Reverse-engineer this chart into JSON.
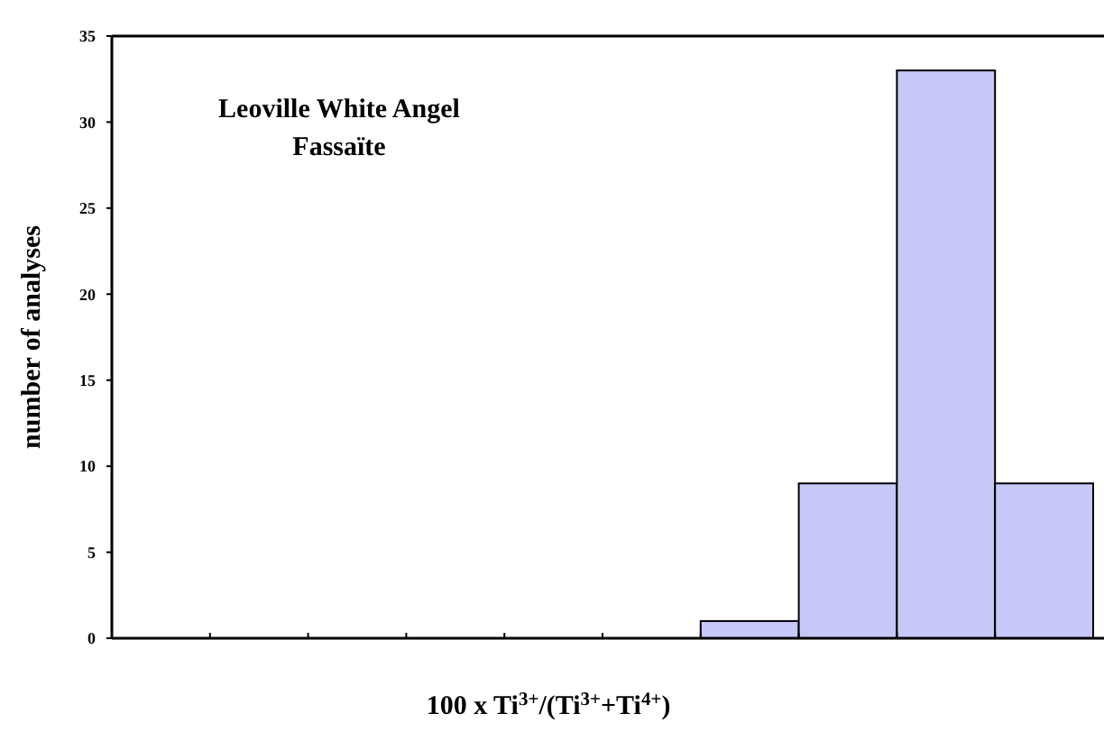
{
  "chart_data": {
    "type": "bar",
    "title": "Leoville White Angel\nFassaïte",
    "xlabel": "100 x Ti$^{3+}$/(Ti$^{3+}$+Ti$^{4+}$)",
    "ylabel": "number of analyses",
    "categories": [
      null,
      null,
      null,
      null,
      null,
      null,
      null,
      null,
      null,
      null
    ],
    "values": [
      0,
      0,
      0,
      0,
      0,
      0,
      1,
      9,
      33,
      9
    ],
    "color": "#c8c8f8",
    "ylim": [
      0,
      35
    ],
    "yticks": [
      0,
      5,
      10,
      15,
      20,
      25,
      30,
      35
    ],
    "grid": false
  }
}
